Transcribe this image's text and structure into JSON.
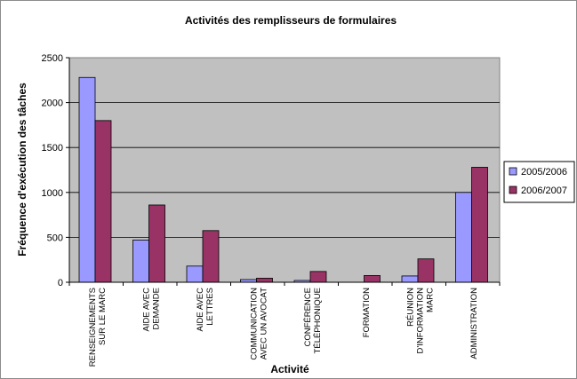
{
  "chart_data": {
    "type": "bar",
    "title": "Activités des remplisseurs de formulaires",
    "xlabel": "Activité",
    "ylabel": "Fréquence d'exécution des tâches",
    "ylim": [
      0,
      2500
    ],
    "yticks": [
      0,
      500,
      1000,
      1500,
      2000,
      2500
    ],
    "grid": true,
    "legend_position": "right",
    "categories": [
      [
        "RENSEIGNEMENTS",
        "SUR LE MARC"
      ],
      [
        "AIDE AVEC",
        "DEMANDE"
      ],
      [
        "AIDE AVEC",
        "LETTRES"
      ],
      [
        "COMMUNICATION",
        "AVEC UN AVOCAT"
      ],
      [
        "CONFÉRENCE",
        "TÉLÉPHONIQUE"
      ],
      [
        "FORMATION"
      ],
      [
        "RÉUNION",
        "D'INFORMATION",
        "MARC"
      ],
      [
        "ADMINISTRATION"
      ]
    ],
    "series": [
      {
        "name": "2005/2006",
        "color": "#9999ff",
        "values": [
          2280,
          470,
          180,
          30,
          20,
          0,
          70,
          1000
        ]
      },
      {
        "name": "2006/2007",
        "color": "#993366",
        "values": [
          1800,
          860,
          575,
          45,
          120,
          75,
          260,
          1280
        ]
      }
    ],
    "plot_background": "#c0c0c0"
  }
}
